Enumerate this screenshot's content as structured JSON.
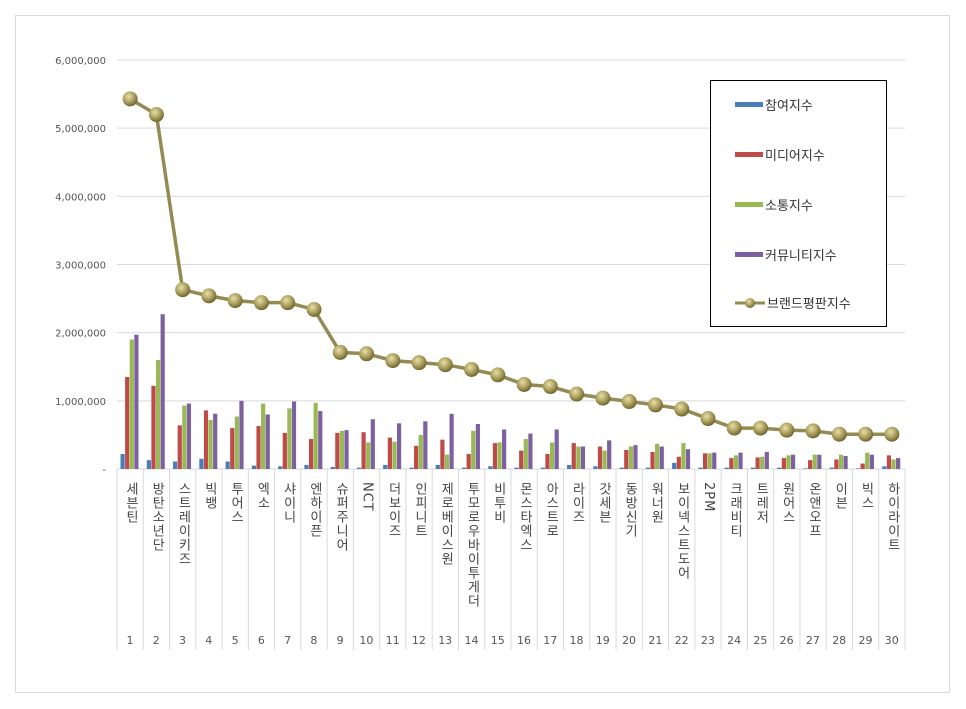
{
  "chart_data": {
    "type": "bar+line",
    "categories": [
      "세븐틴",
      "방탄소년단",
      "스트레이키즈",
      "빅뱅",
      "투어스",
      "엑소",
      "샤이니",
      "엔하이픈",
      "슈퍼주니어",
      "NCT",
      "더보이즈",
      "인피니트",
      "제로베이스원",
      "투모로우바이투게더",
      "비투비",
      "몬스타엑스",
      "아스트로",
      "라이즈",
      "갓세븐",
      "동방신기",
      "워너원",
      "보이넥스트도어",
      "2PM",
      "크래비티",
      "트레저",
      "원어스",
      "온앤오프",
      "이븐",
      "빅스",
      "하이라이트"
    ],
    "ranks": [
      "1",
      "2",
      "3",
      "4",
      "5",
      "6",
      "7",
      "8",
      "9",
      "10",
      "11",
      "12",
      "13",
      "14",
      "15",
      "16",
      "17",
      "18",
      "19",
      "20",
      "21",
      "22",
      "23",
      "24",
      "25",
      "26",
      "27",
      "28",
      "29",
      "30"
    ],
    "ylim": [
      0,
      6000000
    ],
    "yticks": [
      "-",
      "1,000,000",
      "2,000,000",
      "3,000,000",
      "4,000,000",
      "5,000,000",
      "6,000,000"
    ],
    "grid": true,
    "legend_position": "top-right",
    "series": [
      {
        "name": "참여지수",
        "type": "bar",
        "color": "#4a7ebb",
        "values": [
          220000,
          130000,
          110000,
          150000,
          110000,
          50000,
          40000,
          60000,
          30000,
          20000,
          60000,
          20000,
          60000,
          20000,
          40000,
          20000,
          20000,
          60000,
          40000,
          20000,
          20000,
          90000,
          20000,
          20000,
          20000,
          20000,
          10000,
          20000,
          10000,
          40000
        ]
      },
      {
        "name": "미디어지수",
        "type": "bar",
        "color": "#be4b48",
        "values": [
          1350000,
          1220000,
          640000,
          860000,
          600000,
          630000,
          530000,
          440000,
          530000,
          540000,
          460000,
          340000,
          430000,
          220000,
          380000,
          270000,
          220000,
          380000,
          330000,
          280000,
          250000,
          180000,
          230000,
          160000,
          170000,
          160000,
          130000,
          140000,
          80000,
          200000
        ]
      },
      {
        "name": "소통지수",
        "type": "bar",
        "color": "#98b954",
        "values": [
          1900000,
          1600000,
          930000,
          720000,
          770000,
          960000,
          890000,
          970000,
          560000,
          390000,
          400000,
          500000,
          210000,
          560000,
          390000,
          440000,
          390000,
          330000,
          270000,
          330000,
          370000,
          380000,
          230000,
          200000,
          180000,
          200000,
          210000,
          210000,
          240000,
          140000
        ]
      },
      {
        "name": "커뮤니티지수",
        "type": "bar",
        "color": "#7d60a0",
        "values": [
          1970000,
          2270000,
          960000,
          810000,
          1000000,
          800000,
          990000,
          850000,
          570000,
          730000,
          670000,
          700000,
          810000,
          660000,
          580000,
          520000,
          580000,
          330000,
          420000,
          350000,
          330000,
          290000,
          240000,
          240000,
          250000,
          210000,
          210000,
          190000,
          210000,
          160000
        ]
      },
      {
        "name": "브랜드평판지수",
        "type": "line",
        "color": "#948a54",
        "values": [
          5430000,
          5200000,
          2630000,
          2540000,
          2470000,
          2440000,
          2440000,
          2340000,
          1710000,
          1690000,
          1590000,
          1560000,
          1530000,
          1460000,
          1380000,
          1240000,
          1210000,
          1100000,
          1040000,
          990000,
          940000,
          880000,
          740000,
          600000,
          600000,
          570000,
          560000,
          510000,
          510000,
          510000
        ]
      }
    ]
  }
}
